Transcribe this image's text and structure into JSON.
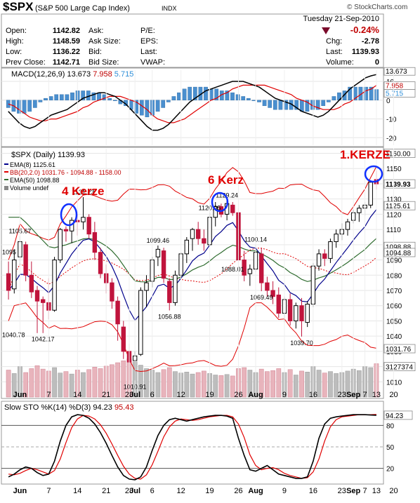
{
  "header": {
    "symbol": "$SPX",
    "name": "(S&P 500 Large Cap Index)",
    "exchange": "INDX",
    "date": "Tuesday  21-Sep-2010",
    "watermark": "© StockCharts.com",
    "quote": {
      "open_label": "Open:",
      "open": "1142.82",
      "high_label": "High:",
      "high": "1148.59",
      "low_label": "Low:",
      "low": "1136.22",
      "prev_label": "Prev Close:",
      "prev": "1142.71",
      "ask_label": "Ask:",
      "asksize_label": "Ask Size:",
      "bid_label": "Bid:",
      "bidsize_label": "Bid Size:",
      "pe_label": "P/E:",
      "eps_label": "EPS:",
      "last_label": "Last:",
      "vwap_label": "VWAP:",
      "pct": "-0.24%",
      "chg_label": "Chg:",
      "chg": "-2.78",
      "last2_label": "Last:",
      "last": "1139.93",
      "volume_label": "Volume:",
      "volume": "0"
    }
  },
  "annotations": {
    "kerze4": "4 Kerze",
    "kerz6": "6 Kerz",
    "kerze1": "1.KERZE"
  },
  "chart_data": [
    {
      "type": "bar",
      "title": "MACD(12,26,9) 13.673, 7.958, 5.715",
      "legend": {
        "name": "MACD(12,26,9)",
        "v1": "13.673",
        "v2": "7.958",
        "v3": "5.715"
      },
      "ylim": [
        -24,
        16
      ],
      "yticks": [
        "10",
        "0",
        "-10",
        "-20"
      ],
      "right_labels": [
        "13.673",
        "7.958",
        "5.715"
      ],
      "macd": [
        -6,
        -9,
        -12,
        -14,
        -15,
        -14,
        -12,
        -10,
        -8,
        -7,
        -6,
        -5,
        -3,
        -1,
        1,
        2,
        3,
        4,
        4,
        3,
        2,
        0,
        -2,
        -5,
        -8,
        -11,
        -14,
        -16,
        -16,
        -15,
        -13,
        -10,
        -7,
        -4,
        -1,
        1,
        3,
        5,
        6,
        7,
        8,
        9,
        10,
        10,
        10,
        9,
        8,
        7,
        5,
        3,
        1,
        0,
        -1,
        -2,
        -4,
        -6,
        -7,
        -8,
        -9,
        -8,
        -6,
        -3,
        0,
        3,
        6,
        8,
        10,
        12,
        13,
        13.7
      ],
      "signal": [
        -2,
        -3,
        -5,
        -7,
        -9,
        -10,
        -11,
        -11,
        -10,
        -10,
        -9,
        -8,
        -7,
        -6,
        -4,
        -3,
        -1,
        0,
        1,
        2,
        2,
        2,
        1,
        0,
        -1,
        -3,
        -5,
        -8,
        -10,
        -11,
        -12,
        -12,
        -11,
        -10,
        -8,
        -6,
        -4,
        -2,
        0,
        1,
        3,
        4,
        6,
        7,
        8,
        8,
        8,
        8,
        8,
        7,
        6,
        5,
        4,
        3,
        1,
        0,
        -1,
        -3,
        -4,
        -5,
        -5,
        -5,
        -4,
        -2,
        -1,
        1,
        3,
        5,
        6,
        7.96
      ],
      "histogram": [
        -4,
        -6,
        -7,
        -7,
        -6,
        -4,
        -1,
        1,
        2,
        3,
        3,
        3,
        4,
        5,
        5,
        5,
        4,
        4,
        3,
        1,
        0,
        -2,
        -3,
        -5,
        -7,
        -8,
        -9,
        -8,
        -6,
        -4,
        -1,
        2,
        4,
        6,
        7,
        7,
        7,
        7,
        6,
        6,
        5,
        5,
        4,
        3,
        2,
        1,
        0,
        -1,
        -3,
        -4,
        -5,
        -5,
        -5,
        -5,
        -5,
        -6,
        -6,
        -5,
        -5,
        -3,
        -1,
        2,
        4,
        5,
        7,
        7,
        7,
        7,
        7,
        5.7
      ]
    },
    {
      "type": "candlestick",
      "title": "$SPX (Daily) 1139.93",
      "legend": {
        "main": "$SPX (Daily) 1139.93",
        "ema8": "EMA(8) 1125.61",
        "bb": "BB(20,2.0) 1031.76 - 1094.88 - 1158.00",
        "ema50": "EMA(50) 1098.88",
        "volume": "Volume undef"
      },
      "colors": {
        "up": "#000000",
        "down": "#c0143c",
        "ema8": "#00008b",
        "bb": "#e00000",
        "ema50": "#2e6b2e"
      },
      "ylim": [
        1000,
        1163
      ],
      "yticks": [
        "1160",
        "1150",
        "1140",
        "1130",
        "1120",
        "1110",
        "1100",
        "1090",
        "1080",
        "1070",
        "1060",
        "1050",
        "1040",
        "1030",
        "1020",
        "1010"
      ],
      "x_labels": [
        "Jun",
        "7",
        "14",
        "21",
        "28",
        "Jul",
        "6",
        "12",
        "19",
        "26",
        "Aug",
        "9",
        "16",
        "23",
        "Sep",
        "7",
        "13",
        "20"
      ],
      "price_labels": [
        "1105.67",
        "1131.23",
        "1042.17",
        "1099.46",
        "1010.91",
        "1056.88",
        "1120.95",
        "1129.24",
        "1088.01",
        "1100.14",
        "1069.49",
        "1039.70"
      ],
      "left_labels": [
        "1095",
        "1040.78"
      ],
      "right_labels": [
        "1160.00",
        "1139.93",
        "1125.61",
        "1098.88",
        "1094.88",
        "1031.76",
        "3127374"
      ],
      "ohlc": [
        [
          1081,
          1089,
          1064,
          1070
        ],
        [
          1071,
          1097,
          1068,
          1090
        ],
        [
          1092,
          1105.67,
          1086,
          1102
        ],
        [
          1100,
          1102,
          1076,
          1080
        ],
        [
          1080,
          1089,
          1065,
          1069
        ],
        [
          1070,
          1073,
          1042,
          1063
        ],
        [
          1064,
          1066,
          1042,
          1062
        ],
        [
          1062,
          1078,
          1051,
          1057
        ],
        [
          1057,
          1092,
          1056,
          1090
        ],
        [
          1090,
          1111,
          1088,
          1110
        ],
        [
          1110,
          1112,
          1102,
          1109
        ],
        [
          1109,
          1118,
          1101,
          1116
        ],
        [
          1116,
          1120,
          1106,
          1115
        ],
        [
          1115,
          1131.23,
          1110,
          1118
        ],
        [
          1118,
          1120,
          1104,
          1107
        ],
        [
          1108,
          1115,
          1090,
          1095
        ],
        [
          1095,
          1098,
          1078,
          1081
        ],
        [
          1081,
          1087,
          1068,
          1075
        ],
        [
          1075,
          1078,
          1058,
          1063
        ],
        [
          1063,
          1066,
          1037,
          1048
        ],
        [
          1046,
          1050,
          1025,
          1030
        ],
        [
          1030,
          1035,
          1011,
          1023
        ],
        [
          1024,
          1030,
          1010.91,
          1027
        ],
        [
          1028,
          1072,
          1027,
          1070
        ],
        [
          1070,
          1080,
          1059,
          1075
        ],
        [
          1076,
          1092,
          1072,
          1090
        ],
        [
          1092,
          1099.46,
          1086,
          1097
        ],
        [
          1096,
          1098,
          1075,
          1078
        ],
        [
          1076,
          1078,
          1056.88,
          1062
        ],
        [
          1062,
          1083,
          1060,
          1080
        ],
        [
          1080,
          1095,
          1078,
          1094
        ],
        [
          1094,
          1105,
          1088,
          1103
        ],
        [
          1104,
          1111,
          1096,
          1110
        ],
        [
          1110,
          1115,
          1100,
          1104
        ],
        [
          1104,
          1110,
          1096,
          1101
        ],
        [
          1100,
          1120.95,
          1099,
          1118
        ],
        [
          1118,
          1128,
          1112,
          1125
        ],
        [
          1125,
          1127,
          1118,
          1120
        ],
        [
          1120,
          1129.24,
          1116,
          1127
        ],
        [
          1126,
          1128,
          1119,
          1121
        ],
        [
          1121,
          1124,
          1088,
          1090
        ],
        [
          1090,
          1096,
          1076,
          1080
        ],
        [
          1081,
          1087,
          1073,
          1084
        ],
        [
          1084,
          1100.14,
          1082,
          1095
        ],
        [
          1094,
          1098,
          1069.49,
          1075
        ],
        [
          1075,
          1079,
          1066,
          1070
        ],
        [
          1070,
          1076,
          1061,
          1066
        ],
        [
          1067,
          1072,
          1052,
          1055
        ],
        [
          1055,
          1066,
          1049,
          1064
        ],
        [
          1064,
          1068,
          1047,
          1050
        ],
        [
          1050,
          1062,
          1045,
          1060
        ],
        [
          1060,
          1065,
          1039.7,
          1050
        ],
        [
          1049,
          1063,
          1046,
          1061
        ],
        [
          1061,
          1088,
          1059,
          1086
        ],
        [
          1086,
          1097,
          1083,
          1094
        ],
        [
          1094,
          1097,
          1086,
          1091
        ],
        [
          1091,
          1104,
          1088,
          1102
        ],
        [
          1102,
          1110,
          1098,
          1107
        ],
        [
          1107,
          1114,
          1103,
          1110
        ],
        [
          1110,
          1117,
          1106,
          1115
        ],
        [
          1116,
          1123,
          1114,
          1121
        ],
        [
          1121,
          1126,
          1115,
          1124
        ],
        [
          1124,
          1128,
          1119,
          1126
        ],
        [
          1126,
          1142,
          1124,
          1141
        ],
        [
          1142.82,
          1148.59,
          1136.22,
          1139.93
        ]
      ]
    },
    {
      "type": "bar",
      "title": "Volume",
      "values": [
        55,
        48,
        62,
        50,
        58,
        64,
        57,
        53,
        60,
        49,
        52,
        47,
        55,
        50,
        56,
        61,
        58,
        63,
        66,
        70,
        74,
        78,
        72,
        65,
        58,
        55,
        50,
        56,
        60,
        52,
        49,
        51,
        47,
        50,
        53,
        48,
        45,
        44,
        46,
        43,
        58,
        60,
        55,
        50,
        57,
        52,
        54,
        58,
        50,
        56,
        45,
        53,
        51,
        62,
        55,
        49,
        52,
        48,
        50,
        53,
        57,
        54,
        62,
        60,
        68
      ]
    },
    {
      "type": "line",
      "title": "Slow STO %K(14) %D(3) 94.23, 95.43",
      "legend": {
        "name": "Slow STO %K(14) %D(3)",
        "k": "94.23",
        "d": "95.43"
      },
      "ylim": [
        0,
        100
      ],
      "yticks": [
        "80",
        "50",
        "20"
      ],
      "right_labels": [
        "94.23"
      ],
      "x_labels": [
        "Jun",
        "7",
        "14",
        "21",
        "28",
        "Jul",
        "6",
        "12",
        "19",
        "26",
        "Aug",
        "9",
        "16",
        "23",
        "Sep",
        "7",
        "13",
        "20"
      ],
      "k": [
        8,
        12,
        18,
        22,
        20,
        14,
        10,
        12,
        30,
        58,
        80,
        92,
        95,
        94,
        90,
        82,
        70,
        55,
        38,
        22,
        10,
        5,
        4,
        8,
        22,
        45,
        66,
        80,
        88,
        90,
        88,
        86,
        88,
        90,
        92,
        93,
        94,
        94,
        93,
        90,
        62,
        38,
        18,
        16,
        20,
        24,
        18,
        12,
        10,
        8,
        6,
        6,
        8,
        30,
        62,
        82,
        90,
        92,
        93,
        94,
        95,
        95,
        95,
        94.5,
        94.23
      ],
      "d": [
        12,
        11,
        13,
        17,
        20,
        18,
        15,
        12,
        17,
        33,
        56,
        77,
        89,
        94,
        93,
        89,
        81,
        69,
        54,
        38,
        23,
        12,
        6,
        5,
        11,
        25,
        44,
        64,
        78,
        86,
        89,
        88,
        87,
        88,
        90,
        92,
        93,
        94,
        94,
        92,
        82,
        63,
        39,
        24,
        18,
        20,
        21,
        18,
        13,
        10,
        8,
        6,
        7,
        15,
        33,
        58,
        78,
        88,
        92,
        93,
        94,
        95,
        95,
        95,
        95.43
      ]
    }
  ]
}
